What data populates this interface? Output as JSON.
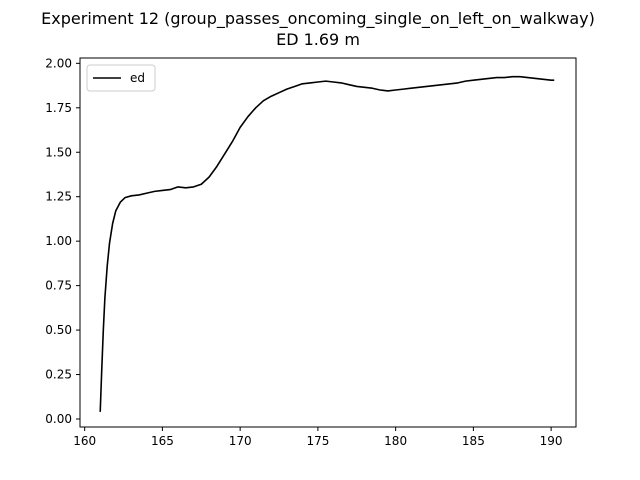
{
  "chart_data": {
    "type": "line",
    "title": "Experiment 12 (group_passes_oncoming_single_on_left_on_walkway)",
    "subtitle": "ED 1.69 m",
    "xlabel": "",
    "ylabel": "",
    "xlim": [
      159.7,
      191.6
    ],
    "ylim": [
      -0.045,
      2.03
    ],
    "x_ticks": [
      160,
      165,
      170,
      175,
      180,
      185,
      190
    ],
    "x_tick_labels": [
      "160",
      "165",
      "170",
      "175",
      "180",
      "185",
      "190"
    ],
    "y_ticks": [
      0.0,
      0.25,
      0.5,
      0.75,
      1.0,
      1.25,
      1.5,
      1.75,
      2.0
    ],
    "y_tick_labels": [
      "0.00",
      "0.25",
      "0.50",
      "0.75",
      "1.00",
      "1.25",
      "1.50",
      "1.75",
      "2.00"
    ],
    "grid": false,
    "legend_position": "top-left",
    "series": [
      {
        "name": "ed",
        "color": "#000000",
        "x": [
          161.0,
          161.1,
          161.2,
          161.3,
          161.45,
          161.6,
          161.8,
          162.0,
          162.3,
          162.6,
          163.0,
          163.5,
          164.0,
          164.5,
          165.0,
          165.5,
          166.0,
          166.5,
          167.0,
          167.5,
          168.0,
          168.5,
          169.0,
          169.5,
          170.0,
          170.5,
          171.0,
          171.5,
          172.0,
          172.5,
          173.0,
          173.5,
          174.0,
          174.5,
          175.0,
          175.5,
          176.0,
          176.5,
          177.0,
          177.5,
          178.0,
          178.5,
          179.0,
          179.5,
          180.0,
          180.5,
          181.0,
          181.5,
          182.0,
          182.5,
          183.0,
          183.5,
          184.0,
          184.5,
          185.0,
          185.5,
          186.0,
          186.5,
          187.0,
          187.5,
          188.0,
          188.5,
          189.0,
          189.5,
          190.0,
          190.2
        ],
        "y": [
          0.04,
          0.28,
          0.5,
          0.68,
          0.86,
          0.99,
          1.1,
          1.17,
          1.22,
          1.245,
          1.255,
          1.26,
          1.27,
          1.28,
          1.285,
          1.29,
          1.305,
          1.3,
          1.305,
          1.32,
          1.36,
          1.42,
          1.49,
          1.56,
          1.64,
          1.7,
          1.75,
          1.79,
          1.815,
          1.835,
          1.855,
          1.87,
          1.885,
          1.89,
          1.895,
          1.9,
          1.895,
          1.89,
          1.88,
          1.87,
          1.865,
          1.86,
          1.85,
          1.845,
          1.85,
          1.855,
          1.86,
          1.865,
          1.87,
          1.875,
          1.88,
          1.885,
          1.89,
          1.9,
          1.905,
          1.91,
          1.915,
          1.92,
          1.92,
          1.925,
          1.925,
          1.92,
          1.915,
          1.91,
          1.905,
          1.905
        ]
      }
    ]
  }
}
